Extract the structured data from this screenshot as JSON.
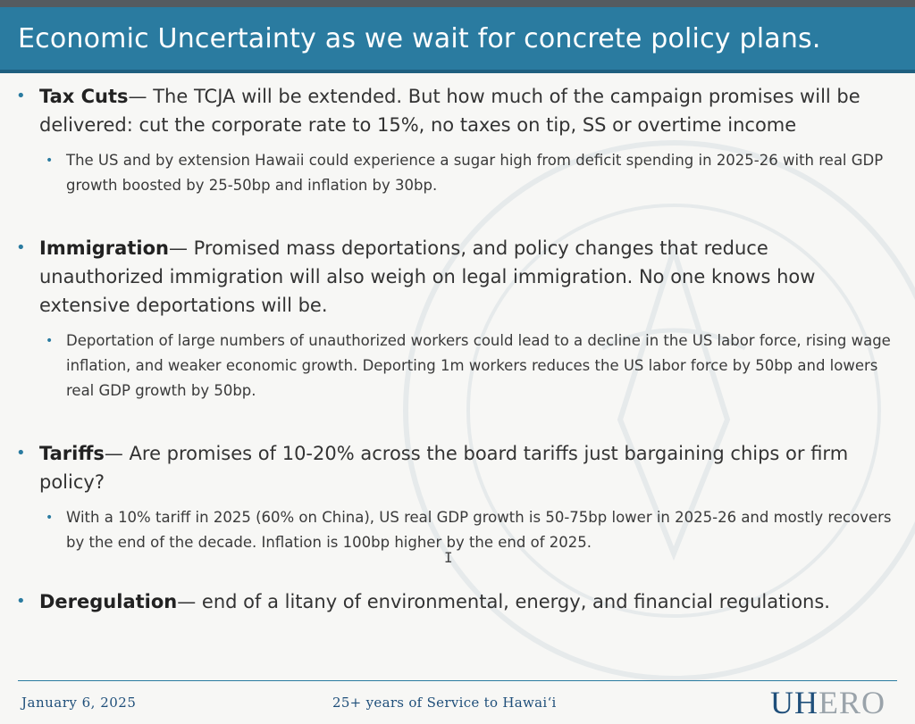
{
  "slide": {
    "title": "Economic Uncertainty as we wait for concrete policy plans."
  },
  "bullets": [
    {
      "heading": "Tax Cuts",
      "text": "— The TCJA will be extended. But how much of the campaign promises will be delivered: cut the corporate rate to 15%, no taxes on tip, SS or overtime income",
      "sub": "The US and by extension Hawaii could experience a sugar high from deficit spending in 2025-26 with real GDP growth boosted by 25-50bp and inflation by 30bp."
    },
    {
      "heading": "Immigration",
      "text": "— Promised mass deportations, and policy changes that reduce unauthorized immigration will also weigh on legal immigration. No one knows how extensive deportations will be.",
      "sub": "Deportation of large numbers of unauthorized workers could lead to a decline in the US labor force, rising wage inflation, and weaker economic growth. Deporting 1m workers reduces the US labor force by 50bp and lowers real GDP growth by 50bp."
    },
    {
      "heading": "Tariffs",
      "text": "— Are promises of 10-20% across the board tariffs just bargaining chips or firm policy?",
      "sub": "With a 10% tariff in 2025 (60% on China), US real GDP growth is 50-75bp lower in 2025-26 and mostly recovers by the end of the decade. Inflation is 100bp higher by the end of 2025."
    },
    {
      "heading": "Deregulation",
      "text": "— end of a litany of environmental, energy, and financial regulations."
    }
  ],
  "footer": {
    "date": "January 6, 2025",
    "tagline": "25+ years of Service to Hawai‘i",
    "logo_primary": "UH",
    "logo_secondary": "ERO"
  },
  "colors": {
    "title_band": "#2a7ba0",
    "footer_text": "#1f4f7a",
    "bullet": "#2a7ba0"
  }
}
